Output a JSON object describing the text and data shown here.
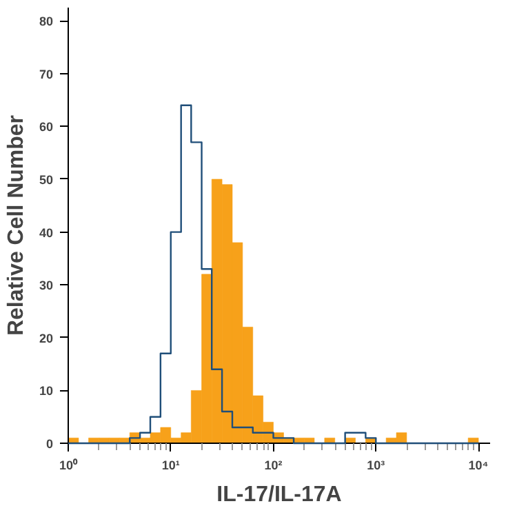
{
  "chart_data": {
    "type": "histogram",
    "xlabel": "IL-17/IL-17A",
    "ylabel": "Relative Cell Number",
    "log": "x",
    "grid": false,
    "bins": [
      1,
      1.26,
      1.58,
      2.0,
      2.51,
      3.16,
      3.98,
      5.01,
      6.31,
      7.94,
      10,
      12.6,
      15.8,
      20.0,
      25.1,
      31.6,
      39.8,
      50.1,
      63.1,
      79.4,
      100,
      126,
      158,
      200,
      251,
      316,
      398,
      501,
      631,
      794,
      1000,
      1259,
      1585,
      1995,
      2512,
      3162,
      3981,
      5012,
      6310,
      7943,
      10000
    ],
    "series": [
      {
        "color": "#f7a11a",
        "values": [
          1,
          0,
          1,
          1,
          1,
          1,
          2,
          1,
          2,
          3,
          1,
          2,
          10,
          32,
          50,
          49,
          38,
          22,
          9,
          4,
          2,
          1,
          1,
          1,
          0,
          1,
          0,
          1,
          0,
          1,
          0,
          1,
          2,
          0,
          0,
          0,
          0,
          0,
          0,
          1
        ]
      },
      {
        "type": "step",
        "color": "#1f4e79",
        "x": [
          1,
          1.26,
          1.58,
          2.0,
          2.51,
          3.16,
          3.98,
          5.01,
          6.31,
          7.94,
          10,
          12.6,
          15.8,
          20.0,
          25.1,
          31.6,
          39.8,
          50.1,
          63.1,
          79.4,
          100,
          126,
          158,
          200,
          251,
          316,
          398,
          501,
          631,
          794,
          1000,
          1259,
          1585,
          1995,
          2512,
          3162,
          3981,
          5012,
          6310,
          7943,
          10000
        ],
        "values": [
          0,
          0,
          0,
          0,
          0,
          0,
          1,
          2,
          5,
          17,
          40,
          64,
          57,
          33,
          14,
          6,
          3,
          3,
          2,
          2,
          1,
          1,
          0,
          0,
          0,
          0,
          0,
          2,
          2,
          1,
          0,
          0,
          0,
          0,
          0,
          0,
          0,
          0,
          0,
          0,
          0
        ]
      }
    ],
    "xlim": [
      1,
      13000
    ],
    "ylim": [
      0,
      82.5
    ],
    "xticks": [
      {
        "value": 1,
        "label": "10⁰"
      },
      {
        "value": 2,
        "label": null
      },
      {
        "value": 3,
        "label": null
      },
      {
        "value": 4,
        "label": null
      },
      {
        "value": 5,
        "label": null
      },
      {
        "value": 6,
        "label": null
      },
      {
        "value": 7,
        "label": null
      },
      {
        "value": 8,
        "label": null
      },
      {
        "value": 9,
        "label": null
      },
      {
        "value": 10,
        "label": "10¹"
      },
      {
        "value": 20,
        "label": null
      },
      {
        "value": 30,
        "label": null
      },
      {
        "value": 40,
        "label": null
      },
      {
        "value": 50,
        "label": null
      },
      {
        "value": 60,
        "label": null
      },
      {
        "value": 70,
        "label": null
      },
      {
        "value": 80,
        "label": null
      },
      {
        "value": 90,
        "label": null
      },
      {
        "value": 100,
        "label": "10²"
      },
      {
        "value": 200,
        "label": null
      },
      {
        "value": 300,
        "label": null
      },
      {
        "value": 400,
        "label": null
      },
      {
        "value": 500,
        "label": null
      },
      {
        "value": 600,
        "label": null
      },
      {
        "value": 700,
        "label": null
      },
      {
        "value": 800,
        "label": null
      },
      {
        "value": 900,
        "label": null
      },
      {
        "value": 1000,
        "label": "10³"
      },
      {
        "value": 2000,
        "label": null
      },
      {
        "value": 3000,
        "label": null
      },
      {
        "value": 4000,
        "label": null
      },
      {
        "value": 5000,
        "label": null
      },
      {
        "value": 6000,
        "label": null
      },
      {
        "value": 7000,
        "label": null
      },
      {
        "value": 8000,
        "label": null
      },
      {
        "value": 9000,
        "label": null
      },
      {
        "value": 10000,
        "label": "10⁴"
      }
    ],
    "yticks": [
      0,
      10,
      20,
      30,
      40,
      50,
      60,
      70,
      80
    ]
  }
}
